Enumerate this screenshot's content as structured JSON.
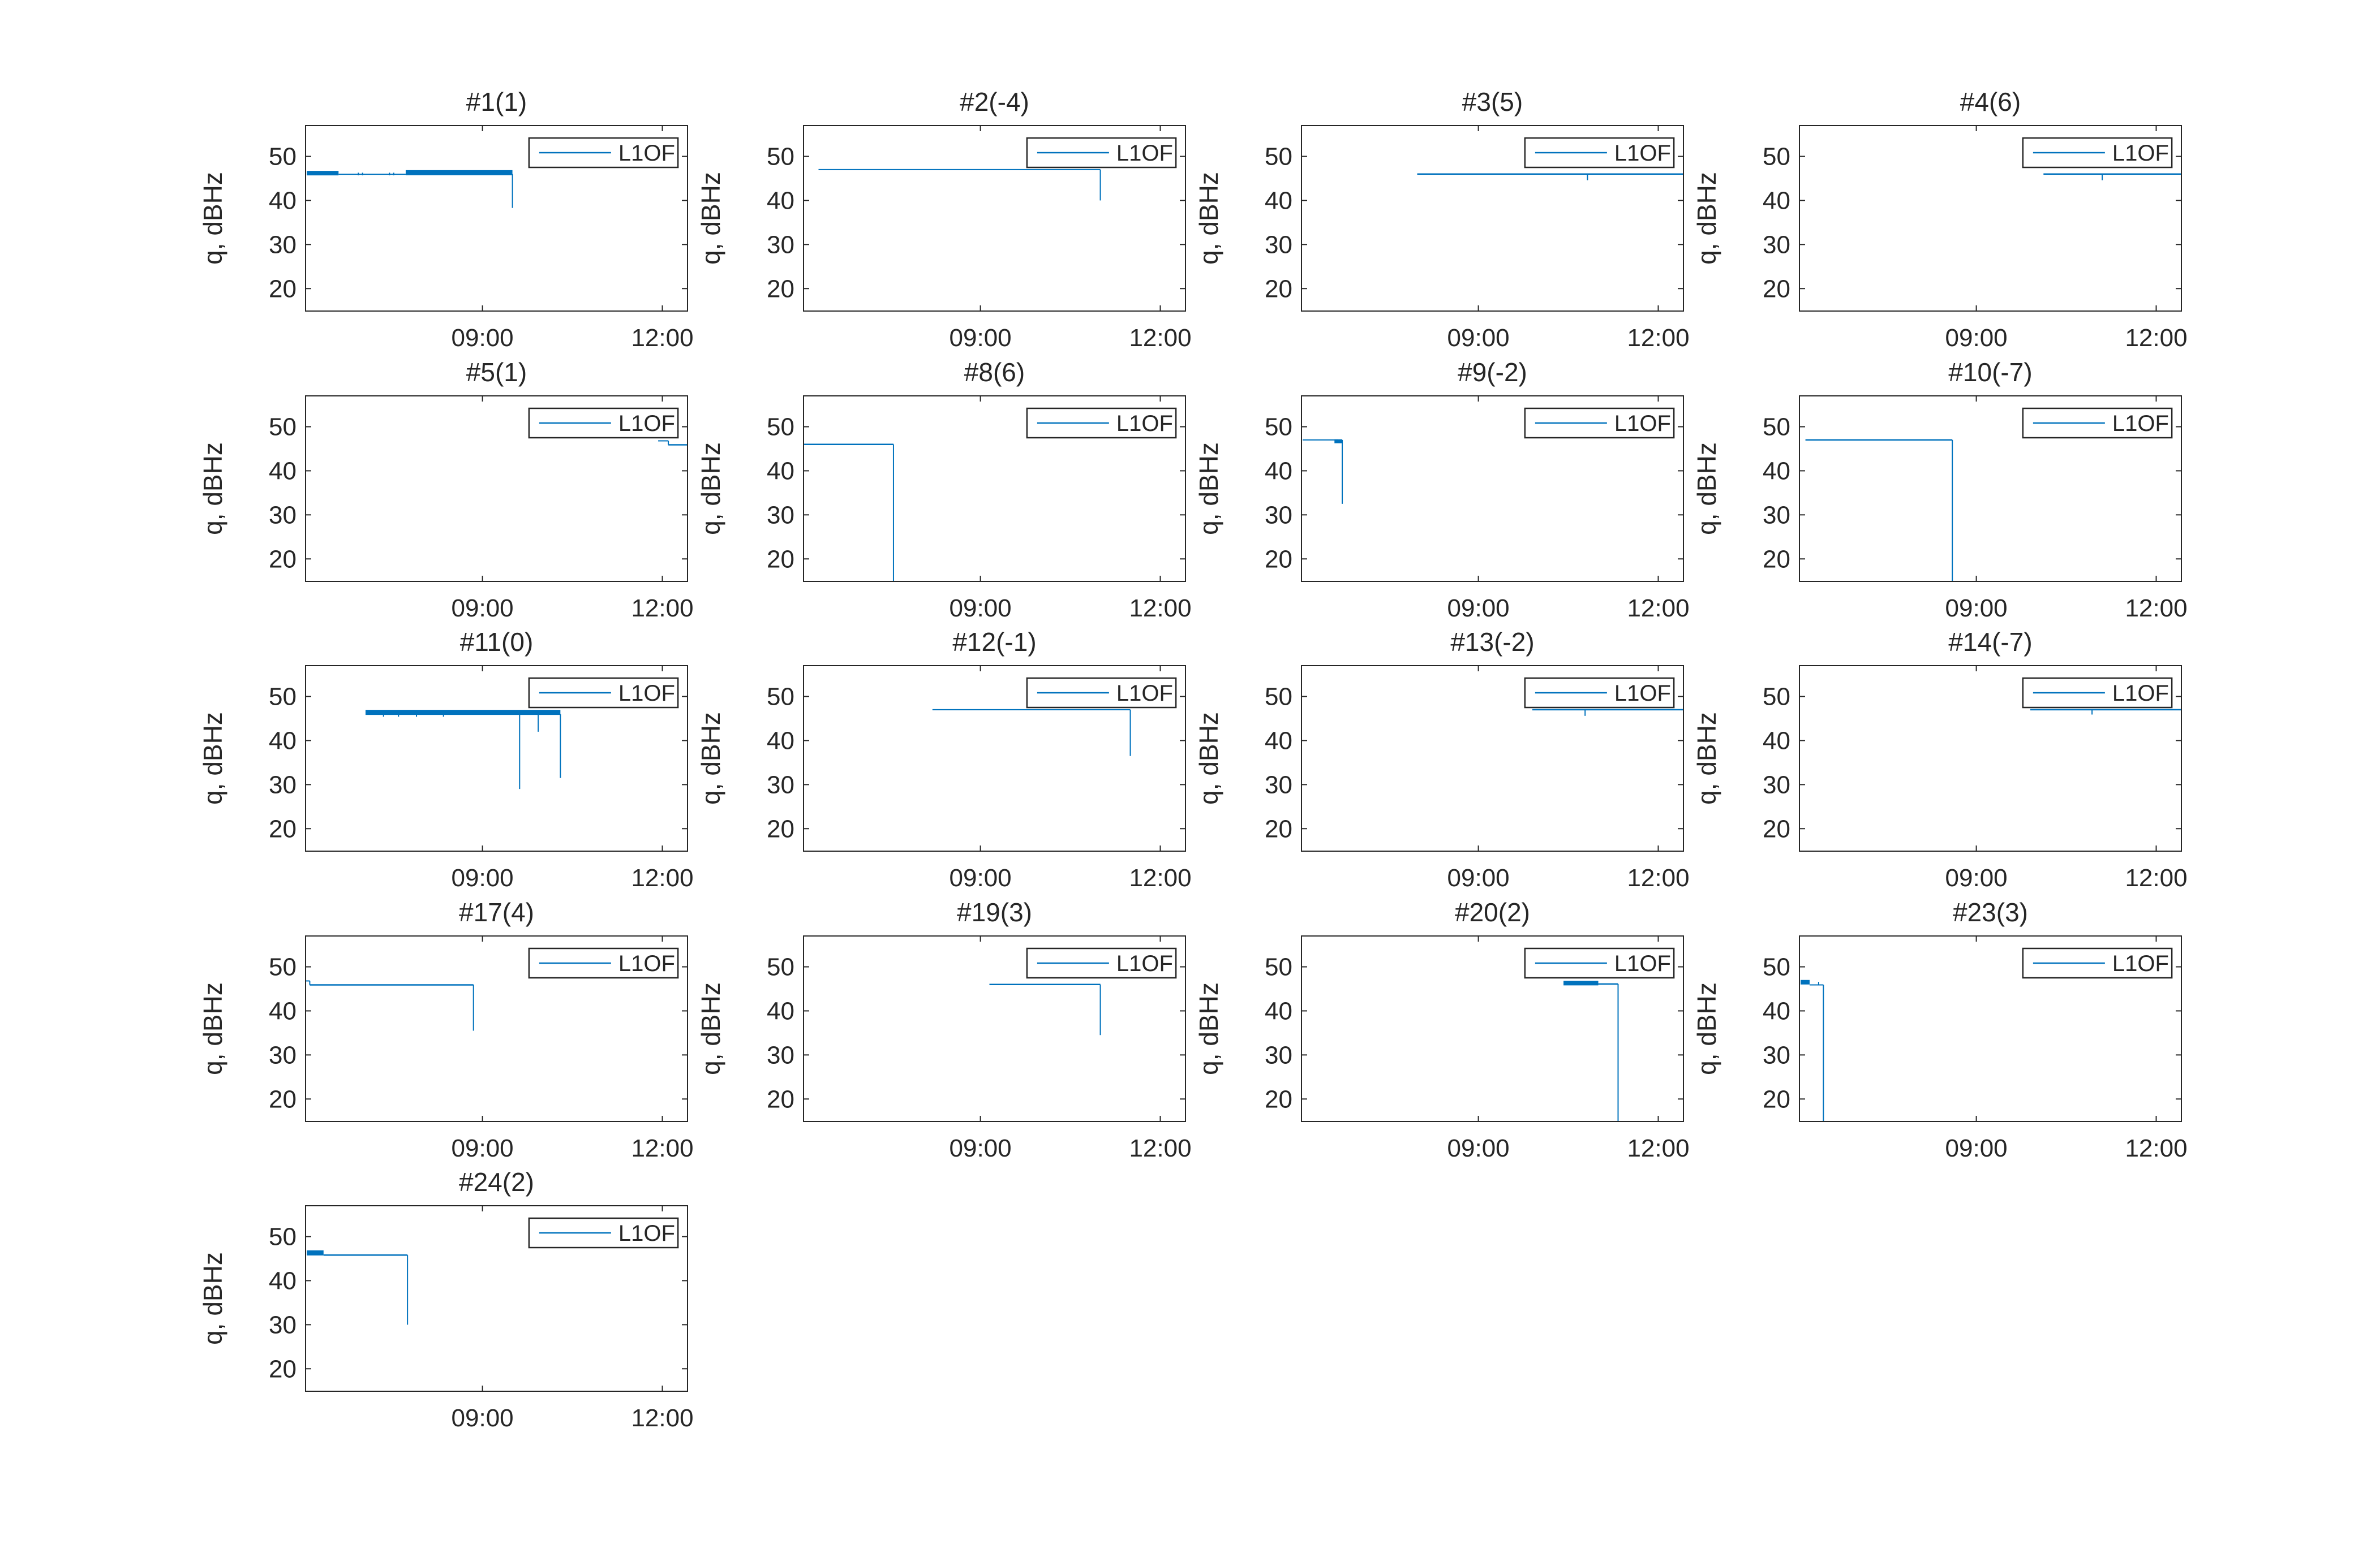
{
  "figure_title": "",
  "chart_data": {
    "type": "line",
    "grid_layout": {
      "rows": 5,
      "cols": 4,
      "last_row_plots": 1
    },
    "shared": {
      "ylabel": "q, dBHz",
      "xlabel": "",
      "legend_label": "L1OF",
      "legend_position": "top-right",
      "grid": false,
      "line_color": "#0072BD",
      "axis_color": "#262626",
      "x_ticks": [
        {
          "hour": 9,
          "label": "09:00"
        },
        {
          "hour": 12,
          "label": "12:00"
        }
      ],
      "y_ticks": [
        {
          "value": 20,
          "label": "20"
        },
        {
          "value": 30,
          "label": "30"
        },
        {
          "value": 40,
          "label": "40"
        },
        {
          "value": 50,
          "label": "50"
        }
      ],
      "x_range_hours": [
        6.05,
        12.42
      ],
      "y_range_dbhz": [
        14.9,
        57.0
      ]
    },
    "subplots": [
      {
        "title": "#1(1)",
        "series": "L1OF",
        "segments": [
          [
            "h",
            6.07,
            6.6,
            46.2,
            8
          ],
          [
            "h",
            6.6,
            7.72,
            45.95,
            2
          ],
          [
            "v",
            6.93,
            46.3,
            45.7,
            2
          ],
          [
            "v",
            7.0,
            46.3,
            45.7,
            2
          ],
          [
            "v",
            7.45,
            46.3,
            45.7,
            2
          ],
          [
            "v",
            7.52,
            46.3,
            45.7,
            2
          ],
          [
            "h",
            7.72,
            9.5,
            46.3,
            9
          ],
          [
            "v",
            9.5,
            46.0,
            38.3,
            2
          ]
        ]
      },
      {
        "title": "#2(-4)",
        "series": "L1OF",
        "segments": [
          [
            "h",
            6.3,
            11.0,
            47.0,
            2
          ],
          [
            "v",
            11.0,
            47.0,
            40.0,
            2
          ]
        ]
      },
      {
        "title": "#3(5)",
        "series": "L1OF",
        "segments": [
          [
            "h",
            7.98,
            12.42,
            46.0,
            2.5
          ],
          [
            "v",
            10.82,
            46.0,
            44.6,
            2
          ]
        ]
      },
      {
        "title": "#4(6)",
        "series": "L1OF",
        "segments": [
          [
            "h",
            10.12,
            12.42,
            46.0,
            2.5
          ],
          [
            "v",
            11.1,
            46.0,
            44.6,
            2
          ]
        ]
      },
      {
        "title": "#5(1)",
        "series": "L1OF",
        "segments": [
          [
            "h",
            11.93,
            12.1,
            46.8,
            2
          ],
          [
            "v",
            12.1,
            46.8,
            45.9,
            2
          ],
          [
            "h",
            12.1,
            12.42,
            45.9,
            2.5
          ]
        ]
      },
      {
        "title": "#8(6)",
        "series": "L1OF",
        "segments": [
          [
            "h",
            6.06,
            7.55,
            46.0,
            2.5
          ],
          [
            "v",
            7.55,
            46.0,
            14.9,
            2
          ]
        ]
      },
      {
        "title": "#9(-2)",
        "series": "L1OF",
        "segments": [
          [
            "h",
            6.07,
            6.66,
            47.0,
            2
          ],
          [
            "h",
            6.6,
            6.73,
            46.7,
            7
          ],
          [
            "v",
            6.73,
            47.0,
            32.5,
            2
          ]
        ]
      },
      {
        "title": "#10(-7)",
        "series": "L1OF",
        "segments": [
          [
            "h",
            6.15,
            8.6,
            47.0,
            2.5
          ],
          [
            "v",
            8.6,
            47.0,
            14.9,
            2
          ]
        ]
      },
      {
        "title": "#11(0)",
        "series": "L1OF",
        "segments": [
          [
            "h",
            7.05,
            10.3,
            46.4,
            9
          ],
          [
            "v",
            7.35,
            46.0,
            45.4,
            2
          ],
          [
            "v",
            7.6,
            46.0,
            45.4,
            2
          ],
          [
            "v",
            7.9,
            46.0,
            45.4,
            2
          ],
          [
            "v",
            8.35,
            46.0,
            45.4,
            2
          ],
          [
            "v",
            9.62,
            46.0,
            29.0,
            2
          ],
          [
            "v",
            9.93,
            46.0,
            42.0,
            2
          ],
          [
            "v",
            10.3,
            46.0,
            31.5,
            2
          ]
        ]
      },
      {
        "title": "#12(-1)",
        "series": "L1OF",
        "segments": [
          [
            "h",
            8.2,
            11.5,
            47.0,
            2
          ],
          [
            "v",
            11.5,
            47.0,
            36.5,
            2
          ]
        ]
      },
      {
        "title": "#13(-2)",
        "series": "L1OF",
        "segments": [
          [
            "h",
            9.9,
            12.42,
            47.0,
            2.5
          ],
          [
            "v",
            10.78,
            47.0,
            45.6,
            2
          ]
        ]
      },
      {
        "title": "#14(-7)",
        "series": "L1OF",
        "segments": [
          [
            "h",
            9.9,
            12.42,
            47.0,
            2.5
          ],
          [
            "v",
            10.93,
            47.0,
            45.9,
            2
          ]
        ]
      },
      {
        "title": "#17(4)",
        "series": "L1OF",
        "segments": [
          [
            "h",
            6.05,
            6.12,
            46.8,
            2
          ],
          [
            "v",
            6.12,
            46.8,
            45.9,
            2
          ],
          [
            "h",
            6.12,
            8.85,
            45.9,
            2.5
          ],
          [
            "v",
            8.85,
            45.9,
            35.5,
            2
          ]
        ]
      },
      {
        "title": "#19(3)",
        "series": "L1OF",
        "segments": [
          [
            "h",
            9.15,
            11.0,
            46.0,
            2.5
          ],
          [
            "v",
            11.0,
            46.0,
            34.5,
            2
          ]
        ]
      },
      {
        "title": "#20(2)",
        "series": "L1OF",
        "segments": [
          [
            "h",
            10.42,
            11.0,
            46.3,
            8
          ],
          [
            "h",
            11.0,
            11.33,
            46.1,
            2.5
          ],
          [
            "v",
            11.33,
            46.1,
            14.9,
            2
          ]
        ]
      },
      {
        "title": "#23(3)",
        "series": "L1OF",
        "segments": [
          [
            "h",
            6.07,
            6.22,
            46.5,
            8
          ],
          [
            "h",
            6.22,
            6.45,
            45.9,
            2
          ],
          [
            "v",
            6.37,
            46.6,
            45.9,
            2
          ],
          [
            "v",
            6.45,
            45.9,
            14.9,
            2
          ]
        ]
      },
      {
        "title": "#24(2)",
        "series": "L1OF",
        "segments": [
          [
            "h",
            6.07,
            6.35,
            46.3,
            9
          ],
          [
            "h",
            6.35,
            7.75,
            45.8,
            2.5
          ],
          [
            "v",
            7.75,
            45.8,
            30.0,
            2
          ]
        ]
      }
    ]
  }
}
